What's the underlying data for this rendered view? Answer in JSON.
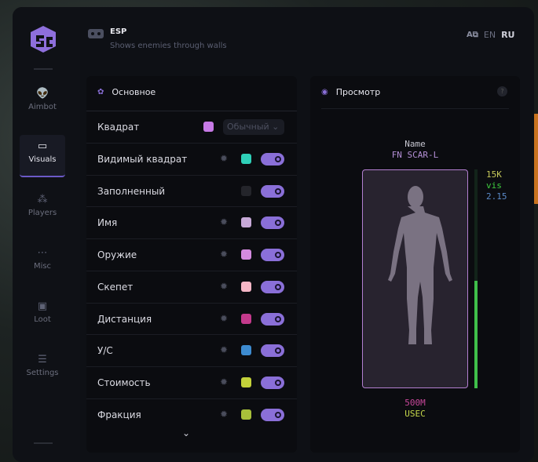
{
  "header": {
    "title": "ESP",
    "subtitle": "Shows enemies through walls",
    "languages": [
      "EN",
      "RU"
    ],
    "active_language": "RU"
  },
  "sidebar": {
    "items": [
      {
        "label": "Aimbot",
        "icon": "alien-icon"
      },
      {
        "label": "Visuals",
        "icon": "vr-headset-icon",
        "active": true
      },
      {
        "label": "Players",
        "icon": "users-icon"
      },
      {
        "label": "Misc",
        "icon": "ellipsis-icon"
      },
      {
        "label": "Loot",
        "icon": "briefcase-icon"
      },
      {
        "label": "Settings",
        "icon": "list-icon"
      }
    ]
  },
  "main": {
    "title": "Основное",
    "box": {
      "label": "Квадрат",
      "color": "#c77ae6",
      "select": "Обычный"
    },
    "rows": [
      {
        "label": "Видимый квадрат",
        "color": "#2fd0b8",
        "gear": true,
        "on": true
      },
      {
        "label": "Заполненный",
        "color": "#24252b",
        "gear": false,
        "on": true
      },
      {
        "label": "Имя",
        "color": "#c7a9d8",
        "gear": true,
        "on": true
      },
      {
        "label": "Оружие",
        "color": "#d48ae0",
        "gear": true,
        "on": true
      },
      {
        "label": "Скепет",
        "color": "#f5b6c6",
        "gear": true,
        "on": true
      },
      {
        "label": "Дистанция",
        "color": "#c43a8c",
        "gear": true,
        "on": true
      },
      {
        "label": "У/С",
        "color": "#3d8bd0",
        "gear": true,
        "on": true
      },
      {
        "label": "Стоимость",
        "color": "#c3d13a",
        "gear": true,
        "on": true
      },
      {
        "label": "Фракция",
        "color": "#a8c03a",
        "gear": true,
        "on": true
      }
    ]
  },
  "preview": {
    "title": "Просмотр",
    "help": "?",
    "name": "Name",
    "weapon": "FN SCAR-L",
    "value": "15K",
    "visibility": "vis",
    "kd": "2.15",
    "distance": "500M",
    "faction": "USEC",
    "health_fraction": 0.49,
    "colors": {
      "box": "#b37fd0",
      "value": "#c6c85a",
      "vis": "#3fcf3f",
      "kd": "#5a8ac8",
      "distance": "#c8479a",
      "faction": "#c6d84a",
      "health": "#3fbf4a"
    }
  }
}
